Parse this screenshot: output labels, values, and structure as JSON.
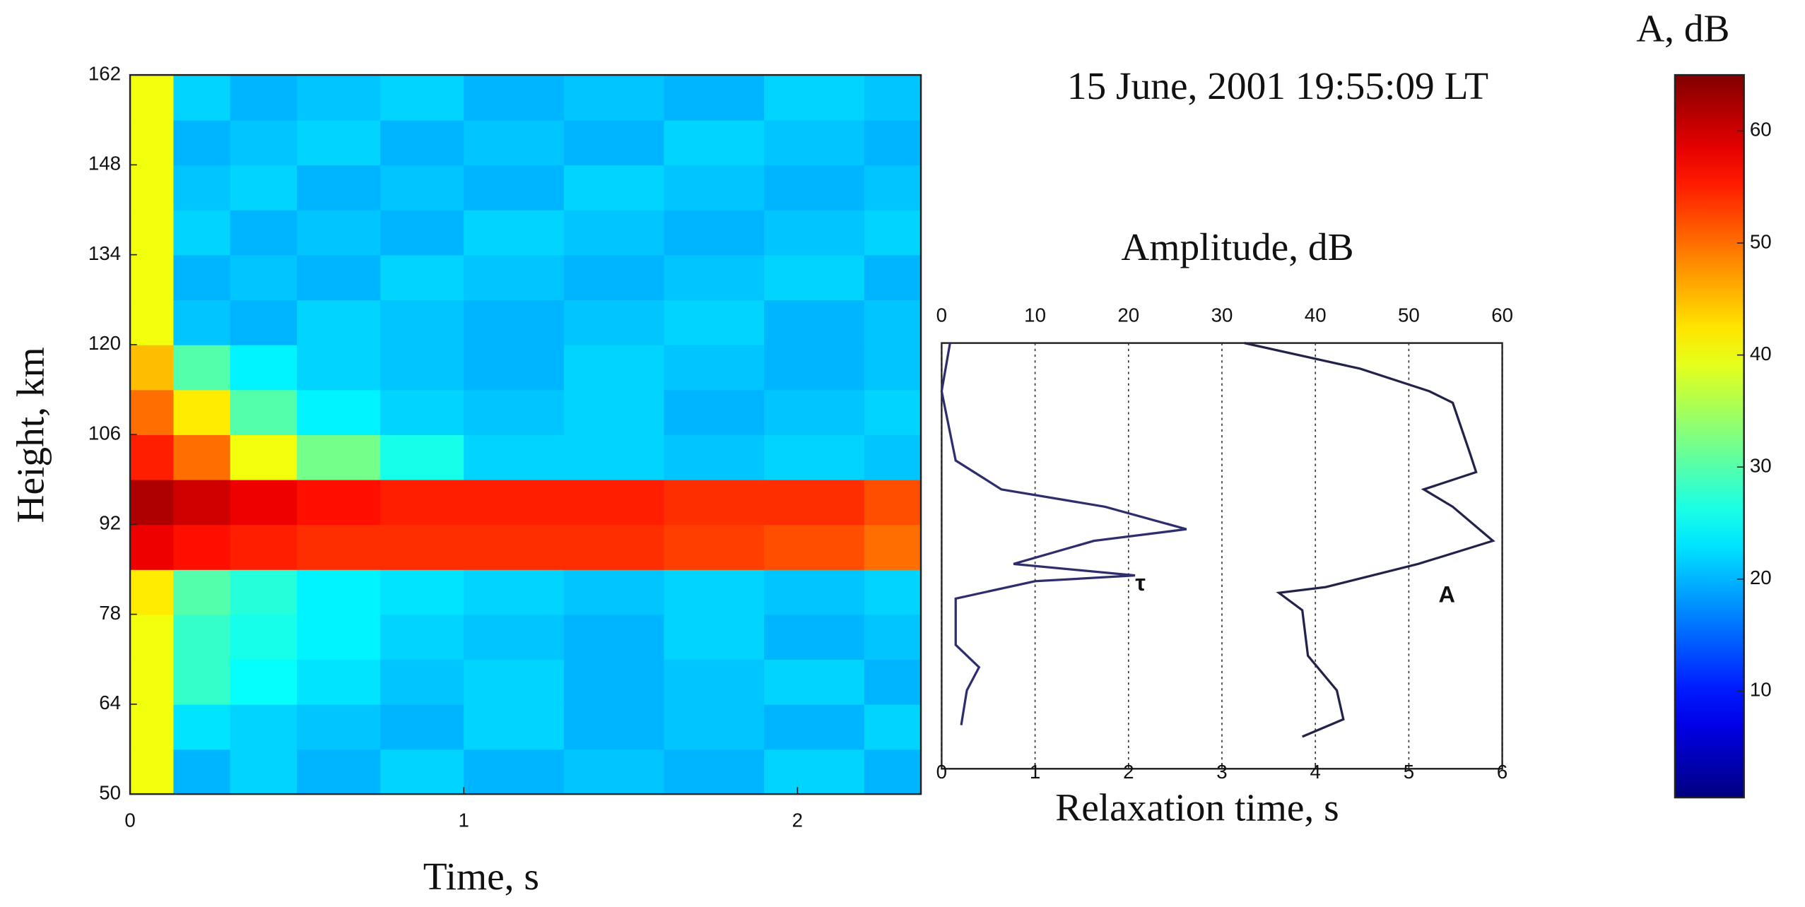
{
  "chart_data": [
    {
      "type": "heatmap",
      "title": "15 June, 2001 19:55:09 LT",
      "xlabel": "Time, s",
      "ylabel": "Height, km",
      "colormap": "jet",
      "zlim": [
        0.5,
        65
      ],
      "xbins": [
        0,
        0.13,
        0.3,
        0.5,
        0.75,
        1.0,
        1.3,
        1.6,
        1.9,
        2.2,
        2.37
      ],
      "ybins": [
        50,
        57,
        64,
        71,
        78,
        85,
        92,
        99,
        106,
        113,
        120,
        127,
        134,
        141,
        148,
        155,
        162
      ],
      "z": [
        [
          40,
          20,
          22,
          20,
          22,
          20,
          21,
          20,
          22,
          20
        ],
        [
          40,
          23,
          22,
          21,
          20,
          22,
          20,
          21,
          20,
          22
        ],
        [
          40,
          28,
          25,
          23,
          21,
          22,
          20,
          21,
          22,
          20
        ],
        [
          40,
          28,
          26,
          24,
          22,
          21,
          20,
          22,
          20,
          21
        ],
        [
          42,
          30,
          27,
          24,
          23,
          22,
          21,
          22,
          21,
          22
        ],
        [
          58,
          56,
          55,
          54,
          54,
          54,
          54,
          53,
          52,
          50
        ],
        [
          62,
          60,
          58,
          56,
          55,
          55,
          55,
          54,
          54,
          52
        ],
        [
          55,
          50,
          40,
          32,
          26,
          22,
          22,
          21,
          22,
          21
        ],
        [
          50,
          42,
          30,
          24,
          22,
          21,
          22,
          20,
          21,
          22
        ],
        [
          45,
          30,
          24,
          22,
          21,
          20,
          22,
          21,
          20,
          21
        ],
        [
          40,
          21,
          20,
          22,
          21,
          20,
          21,
          22,
          20,
          21
        ],
        [
          40,
          20,
          21,
          20,
          22,
          21,
          20,
          21,
          22,
          20
        ],
        [
          40,
          22,
          20,
          21,
          20,
          22,
          21,
          20,
          21,
          22
        ],
        [
          40,
          21,
          22,
          20,
          21,
          20,
          22,
          21,
          20,
          21
        ],
        [
          40,
          20,
          21,
          22,
          20,
          21,
          20,
          22,
          21,
          20
        ],
        [
          40,
          22,
          20,
          21,
          22,
          20,
          21,
          20,
          22,
          21
        ]
      ],
      "xlim": [
        0,
        2.37
      ],
      "xticks": [
        0,
        1,
        2
      ],
      "ylim": [
        50,
        162
      ],
      "yticks": [
        50,
        64,
        78,
        92,
        106,
        120,
        134,
        148,
        162
      ]
    },
    {
      "type": "line",
      "xlabel": "Amplitude, dB",
      "x2label": "Relaxation time, s",
      "xlim": [
        0,
        60
      ],
      "xticks": [
        0,
        10,
        20,
        30,
        40,
        50,
        60
      ],
      "x2lim": [
        0,
        6
      ],
      "x2ticks": [
        0,
        1,
        2,
        3,
        4,
        5,
        6
      ],
      "ylim": [
        53.7,
        120
      ],
      "grid": true,
      "series": [
        {
          "name": "τ",
          "color": "#2e2e6e",
          "axis": "x2",
          "values": [
            0.09,
            0.0,
            0.15,
            0.64,
            1.75,
            2.62,
            1.63,
            0.77,
            2.07,
            1.0,
            0.15,
            0.15,
            0.4,
            0.27,
            0.21
          ],
          "heights": [
            120,
            112.5,
            101.7,
            97.2,
            94.5,
            91,
            89.2,
            85.6,
            83.8,
            82.9,
            80.2,
            73,
            69.5,
            65.9,
            60.5
          ]
        },
        {
          "name": "A",
          "color": "#22224a",
          "axis": "x",
          "values": [
            32.4,
            44.8,
            52.2,
            54.7,
            56.6,
            57.2,
            51.6,
            54.7,
            59.0,
            51.0,
            41.1,
            36.1,
            38.6,
            39.2,
            42.3,
            43.0,
            38.6
          ],
          "heights": [
            120,
            116,
            112.5,
            110.7,
            102.6,
            99.9,
            97.2,
            94.5,
            89.2,
            85.6,
            82.0,
            81.1,
            78.4,
            71.3,
            65.9,
            61.4,
            58.7
          ]
        }
      ]
    },
    {
      "type": "colorbar",
      "title": "A, dB",
      "colormap": "jet",
      "ylim": [
        0.5,
        65
      ],
      "yticks": [
        10,
        20,
        30,
        40,
        50,
        60
      ]
    }
  ]
}
